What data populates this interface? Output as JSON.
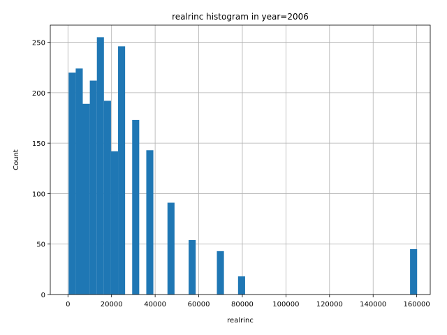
{
  "chart_data": {
    "type": "bar",
    "title": "realrinc histogram in year=2006",
    "xlabel": "realrinc",
    "ylabel": "Count",
    "bin_width": 3238,
    "xlim": [
      -8100,
      166200
    ],
    "ylim": [
      0,
      267
    ],
    "xticks": [
      0,
      20000,
      40000,
      60000,
      80000,
      100000,
      120000,
      140000,
      160000
    ],
    "yticks": [
      0,
      50,
      100,
      150,
      200,
      250
    ],
    "grid": true,
    "color": "#1f77b4",
    "bins": [
      {
        "x": 323,
        "count": 220
      },
      {
        "x": 3561,
        "count": 224
      },
      {
        "x": 6799,
        "count": 189
      },
      {
        "x": 10037,
        "count": 212
      },
      {
        "x": 13275,
        "count": 255
      },
      {
        "x": 16513,
        "count": 192
      },
      {
        "x": 19751,
        "count": 142
      },
      {
        "x": 22989,
        "count": 246
      },
      {
        "x": 29465,
        "count": 173
      },
      {
        "x": 35941,
        "count": 143
      },
      {
        "x": 45655,
        "count": 91
      },
      {
        "x": 55369,
        "count": 54
      },
      {
        "x": 68321,
        "count": 43
      },
      {
        "x": 78035,
        "count": 18
      },
      {
        "x": 156939,
        "count": 45
      }
    ]
  }
}
